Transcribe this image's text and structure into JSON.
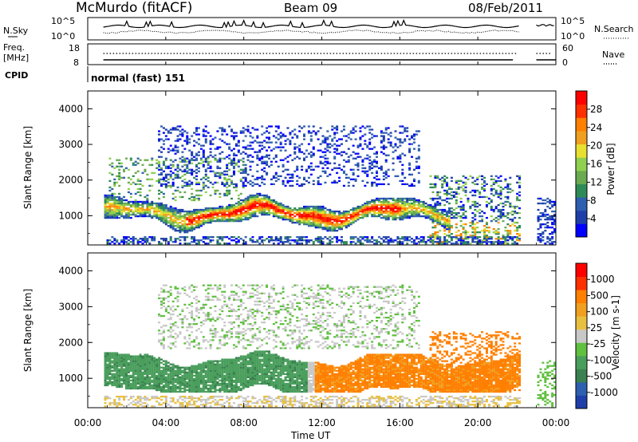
{
  "header": {
    "station": "McMurdo (fitACF)",
    "beam": "Beam 09",
    "date": "08/Feb/2011"
  },
  "noise_panel": {
    "left_label": "N.Sky",
    "right_label": "N.Search",
    "left_ticks": [
      "10^5",
      "10^0"
    ],
    "right_ticks": [
      "10^5",
      "10^0"
    ]
  },
  "freq_panel": {
    "left_label_line1": "Freq.",
    "left_label_line2": "[MHz]",
    "right_label": "Nave",
    "left_ticks": [
      "18",
      "8"
    ],
    "right_ticks": [
      "60",
      "0"
    ]
  },
  "cpid": {
    "label": "CPID",
    "value": "normal (fast) 151"
  },
  "time_axis": {
    "label": "Time UT",
    "ticks": [
      "00:00",
      "04:00",
      "08:00",
      "12:00",
      "16:00",
      "20:00",
      "00:00"
    ]
  },
  "chart_data": [
    {
      "type": "heatmap",
      "name": "power",
      "ylabel": "Slant Range [km]",
      "y_ticks": [
        1000,
        2000,
        3000,
        4000
      ],
      "ylim": [
        180,
        4500
      ],
      "xlim_hours": [
        0,
        24
      ],
      "colorbar_label": "Power [dB]",
      "colorbar_ticks": [
        "28",
        "24",
        "20",
        "16",
        "12",
        "8",
        "4"
      ],
      "colorbar_colors": [
        "#0000ff",
        "#1e3faa",
        "#2e5fb0",
        "#2e8b57",
        "#6aaa50",
        "#90d050",
        "#e8e030",
        "#f0a020",
        "#ff7f00",
        "#ff3000",
        "#ff0000"
      ]
    },
    {
      "type": "heatmap",
      "name": "velocity",
      "ylabel": "Slant Range [km]",
      "y_ticks": [
        1000,
        2000,
        3000,
        4000
      ],
      "ylim": [
        180,
        4500
      ],
      "xlim_hours": [
        0,
        24
      ],
      "colorbar_label": "Velocity [m s-1]",
      "colorbar_ticks": [
        "1000",
        "500",
        "100",
        "25",
        "-25",
        "-100",
        "-500",
        "-1000"
      ],
      "colorbar_colors": [
        "#1e3faa",
        "#2e5fb0",
        "#3a8050",
        "#4a9e5c",
        "#60c040",
        "#c8c8c8",
        "#e8c040",
        "#f0a020",
        "#ff7f00",
        "#ff3000",
        "#ff0000"
      ]
    }
  ]
}
